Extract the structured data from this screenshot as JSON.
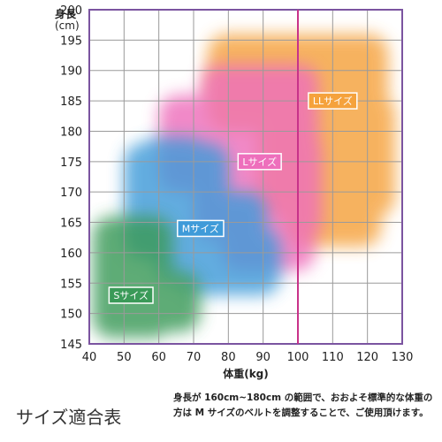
{
  "chart_data": {
    "type": "heatmap",
    "xlabel": "体重(kg)",
    "ylabel_line1": "身長",
    "ylabel_line2": "(cm)",
    "xlim": [
      40,
      130
    ],
    "ylim": [
      145,
      200
    ],
    "x_ticks": [
      "40",
      "50",
      "60",
      "70",
      "80",
      "90",
      "100",
      "110",
      "120",
      "130"
    ],
    "y_ticks": [
      "145",
      "150",
      "155",
      "160",
      "165",
      "170",
      "175",
      "180",
      "185",
      "190",
      "195",
      "200"
    ],
    "grid": true,
    "reference_line": {
      "x": 100,
      "color": "#c8328a"
    },
    "zones": [
      {
        "name": "Sサイズ",
        "color": "#3a9a58",
        "label_at": {
          "x": 52,
          "y": 153
        },
        "regions": [
          {
            "x": [
              41,
              64
            ],
            "y": [
              146,
              166
            ]
          },
          {
            "x": [
              54,
              72
            ],
            "y": [
              147,
              157
            ]
          },
          {
            "x": [
              46,
              60
            ],
            "y": [
              150,
              162
            ]
          }
        ]
      },
      {
        "name": "Mサイズ",
        "color": "#3f9bd9",
        "label_at": {
          "x": 72,
          "y": 164
        },
        "regions": [
          {
            "x": [
              50,
              80
            ],
            "y": [
              159,
              178
            ]
          },
          {
            "x": [
              59,
              91
            ],
            "y": [
              155,
              170
            ]
          },
          {
            "x": [
              66,
              95
            ],
            "y": [
              153,
              164
            ]
          },
          {
            "x": [
              54,
              74
            ],
            "y": [
              165,
              179
            ]
          }
        ]
      },
      {
        "name": "Lサイズ",
        "color": "#ee6fbc",
        "label_at": {
          "x": 89,
          "y": 175
        },
        "regions": [
          {
            "x": [
              60,
              106
            ],
            "y": [
              170,
              186
            ]
          },
          {
            "x": [
              70,
              107
            ],
            "y": [
              162,
              180
            ]
          },
          {
            "x": [
              72,
              106
            ],
            "y": [
              183,
              191
            ]
          },
          {
            "x": [
              78,
              105
            ],
            "y": [
              157,
              168
            ]
          }
        ]
      },
      {
        "name": "LLサイズ",
        "color": "#f5a23c",
        "label_at": {
          "x": 110,
          "y": 185
        },
        "regions": [
          {
            "x": [
              74,
              126
            ],
            "y": [
              180,
              196
            ]
          },
          {
            "x": [
              88,
              128
            ],
            "y": [
              166,
              186
            ]
          },
          {
            "x": [
              96,
              124
            ],
            "y": [
              161,
              172
            ]
          }
        ]
      }
    ]
  },
  "footer": {
    "title": "サイズ適合表",
    "note": "身長が 160cm~180cm の範囲で、おおよそ標準的な体重の方は M サイズのベルトを調整することで、ご使用頂けます。"
  },
  "colors": {
    "frame": "#7b54a0",
    "grid": "#9a9a9a",
    "label_border": "#ffffff"
  }
}
